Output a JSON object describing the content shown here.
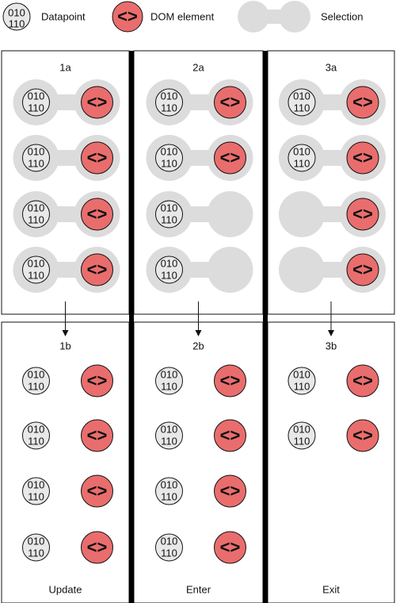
{
  "legend": {
    "datapoint_line1": "010",
    "datapoint_line2": "110",
    "datapoint_label": "Datapoint",
    "dom_glyph": "<>",
    "dom_label": "DOM element",
    "selection_label": "Selection"
  },
  "panels": [
    {
      "top_label": "1a",
      "bottom_label": "1b",
      "caption": "Update",
      "top_rows": [
        {
          "data": true,
          "dom": true
        },
        {
          "data": true,
          "dom": true
        },
        {
          "data": true,
          "dom": true
        },
        {
          "data": true,
          "dom": true
        }
      ],
      "bottom_rows": [
        {
          "data": true,
          "dom": true
        },
        {
          "data": true,
          "dom": true
        },
        {
          "data": true,
          "dom": true
        },
        {
          "data": true,
          "dom": true
        }
      ]
    },
    {
      "top_label": "2a",
      "bottom_label": "2b",
      "caption": "Enter",
      "top_rows": [
        {
          "data": true,
          "dom": true
        },
        {
          "data": true,
          "dom": true
        },
        {
          "data": true,
          "dom": false
        },
        {
          "data": true,
          "dom": false
        }
      ],
      "bottom_rows": [
        {
          "data": true,
          "dom": true
        },
        {
          "data": true,
          "dom": true
        },
        {
          "data": true,
          "dom": true
        },
        {
          "data": true,
          "dom": true
        }
      ]
    },
    {
      "top_label": "3a",
      "bottom_label": "3b",
      "caption": "Exit",
      "top_rows": [
        {
          "data": true,
          "dom": true
        },
        {
          "data": true,
          "dom": true
        },
        {
          "data": false,
          "dom": true
        },
        {
          "data": false,
          "dom": true
        }
      ],
      "bottom_rows": [
        {
          "data": true,
          "dom": true
        },
        {
          "data": true,
          "dom": true
        }
      ]
    }
  ],
  "colors": {
    "selection": "#dcdcdc",
    "datapoint_fill": "#e8e8e8",
    "dom_fill": "#ea6d6d",
    "divider": "#000000"
  }
}
